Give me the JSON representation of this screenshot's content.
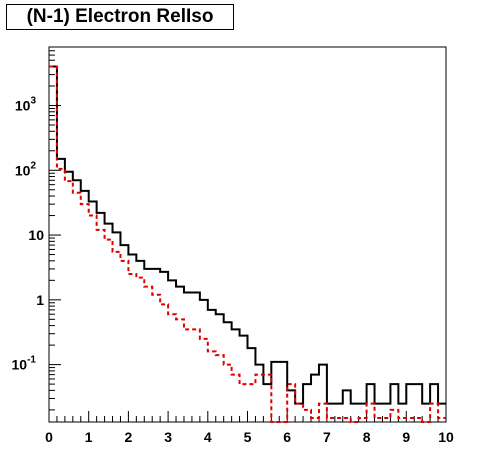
{
  "chart_data": {
    "type": "line",
    "title": "(N-1) Electron RelIso",
    "xlabel": "",
    "ylabel": "",
    "xlim": [
      0,
      10
    ],
    "ylim": [
      0.013,
      8000
    ],
    "yscale": "log",
    "grid": false,
    "x_ticks": [
      "0",
      "1",
      "2",
      "3",
      "4",
      "5",
      "6",
      "7",
      "8",
      "9",
      "10"
    ],
    "y_ticks": [
      {
        "value": 1000,
        "base": "10",
        "exp": "3"
      },
      {
        "value": 100,
        "base": "10",
        "exp": "2"
      },
      {
        "value": 10,
        "base": "10",
        "exp": ""
      },
      {
        "value": 1,
        "base": "1",
        "exp": ""
      },
      {
        "value": 0.1,
        "base": "10",
        "exp": "-1"
      }
    ],
    "bin_width": 0.2,
    "series": [
      {
        "color": "#000000",
        "style": "solid",
        "values": [
          4000,
          150,
          95,
          70,
          48,
          33,
          22,
          15,
          11,
          7,
          5,
          4,
          3,
          3,
          2.7,
          2,
          1.6,
          1.3,
          1.3,
          1.0,
          0.7,
          0.6,
          0.45,
          0.35,
          0.28,
          0.18,
          0.1,
          0.05,
          0.11,
          0.11,
          0.04,
          0.025,
          0.05,
          0.07,
          0.1,
          0.025,
          0.025,
          0.04,
          0.025,
          0.025,
          0.05,
          0.025,
          0.025,
          0.05,
          0.025,
          0.05,
          0.05,
          0.025,
          0.05,
          0.025
        ]
      },
      {
        "color": "#e00000",
        "style": "dashed",
        "values": [
          4000,
          105,
          68,
          45,
          30,
          20,
          12,
          8.5,
          5.5,
          4,
          2.5,
          2.2,
          1.6,
          1.2,
          0.85,
          0.6,
          0.5,
          0.35,
          0.35,
          0.25,
          0.16,
          0.14,
          0.1,
          0.07,
          0.05,
          0.05,
          0.07,
          0.07,
          0.01,
          0.01,
          0.05,
          0.025,
          0.02,
          0.015,
          0.025,
          0.015,
          0.015,
          0.015,
          0.01,
          0.015,
          0.025,
          0.015,
          0.015,
          0.02,
          0.015,
          0.015,
          0.015,
          0.01,
          0.025,
          0.015
        ]
      }
    ]
  }
}
